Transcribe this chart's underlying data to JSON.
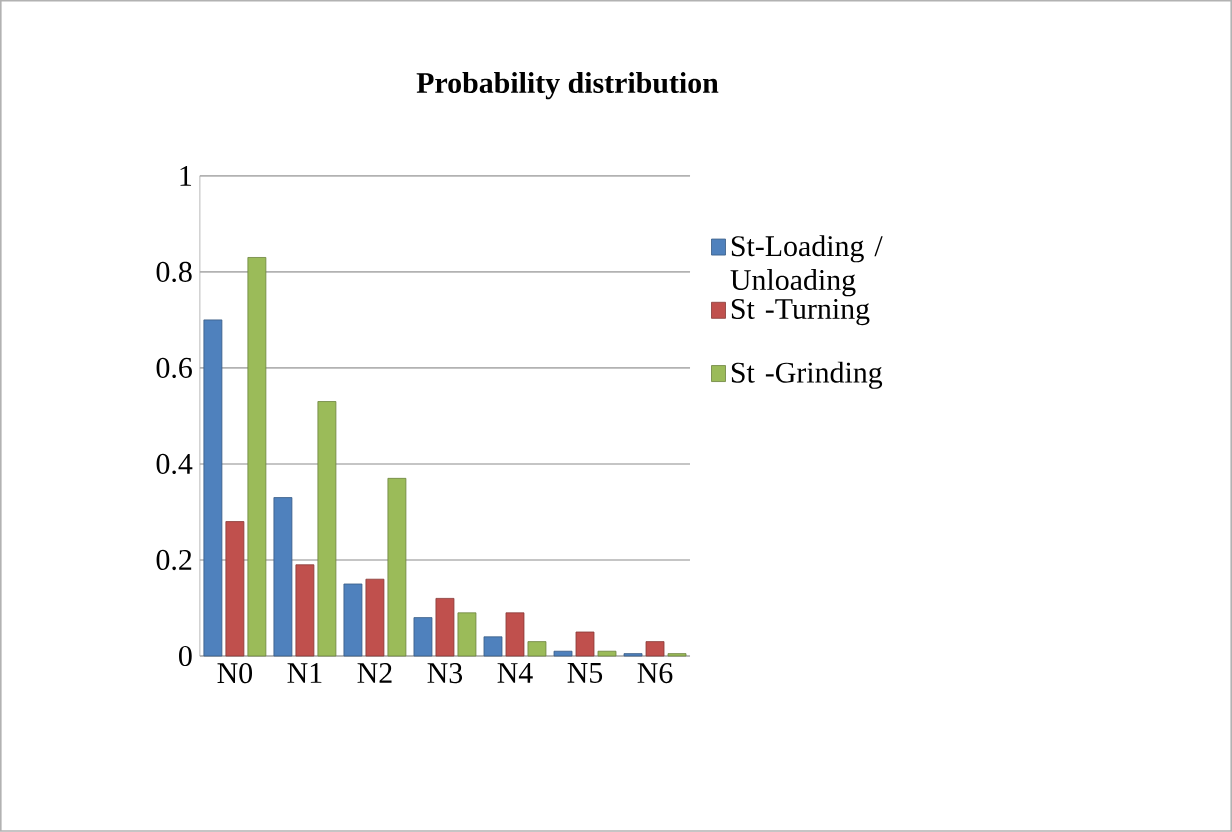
{
  "chart_data": {
    "type": "bar",
    "title": "Probability distribution",
    "categories": [
      "N0",
      "N1",
      "N2",
      "N3",
      "N4",
      "N5",
      "N6"
    ],
    "series": [
      {
        "name": "St-Loading / Unloading",
        "color": "#4f81bd",
        "values": [
          0.7,
          0.33,
          0.15,
          0.08,
          0.04,
          0.01,
          0.005
        ]
      },
      {
        "name": "St -Turning",
        "color": "#c0504d",
        "values": [
          0.28,
          0.19,
          0.16,
          0.12,
          0.09,
          0.05,
          0.03
        ]
      },
      {
        "name": "St -Grinding",
        "color": "#9bbb59",
        "values": [
          0.83,
          0.53,
          0.37,
          0.09,
          0.03,
          0.01,
          0.005
        ]
      }
    ],
    "ylim": [
      0,
      1
    ],
    "yticks": [
      0,
      0.2,
      0.4,
      0.6,
      0.8,
      1
    ],
    "grid": "y",
    "legend": "right"
  }
}
